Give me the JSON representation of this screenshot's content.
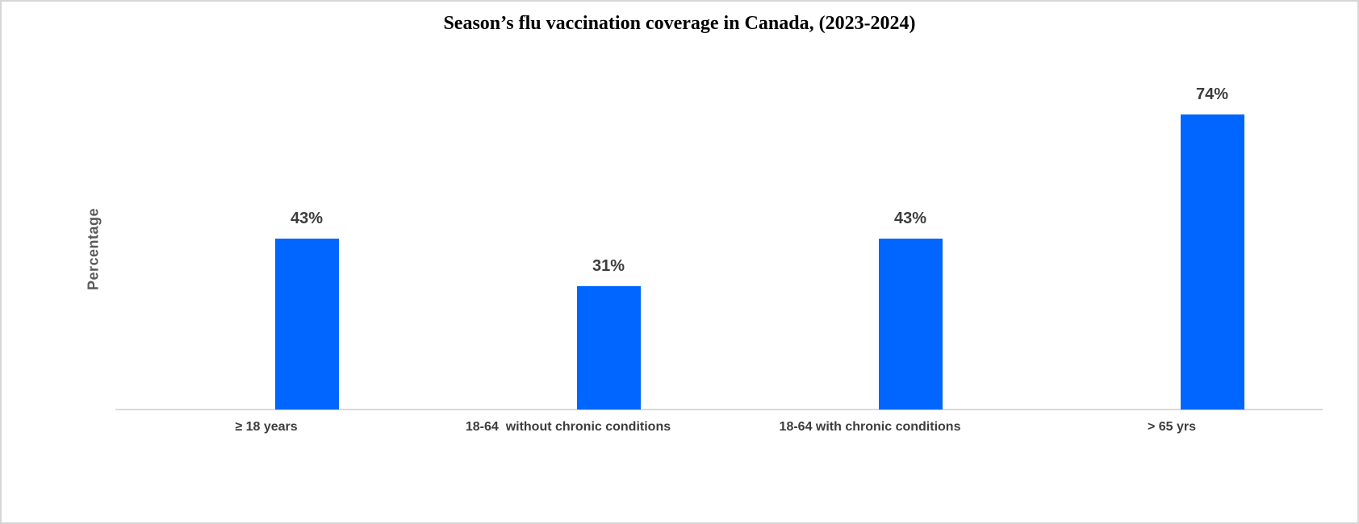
{
  "chart_data": {
    "type": "bar",
    "title": "Season’s flu vaccination coverage in Canada, (2023-2024)",
    "ylabel": "Percentage",
    "xlabel": "",
    "categories": [
      "≥ 18 years",
      "18-64  without chronic conditions",
      "18-64 with chronic conditions",
      "> 65 yrs"
    ],
    "values": [
      43,
      31,
      43,
      74
    ],
    "data_labels": [
      "43%",
      "31%",
      "43%",
      "74%"
    ],
    "ylim": [
      0,
      100
    ],
    "grid": false,
    "legend": false,
    "bar_color": "#0066ff",
    "axis_line_color": "#d9d9d9",
    "data_label_color": "#3d3d3d",
    "category_label_color": "#3d3d3d",
    "ylabel_color": "#595959",
    "title_color": "#000000"
  }
}
